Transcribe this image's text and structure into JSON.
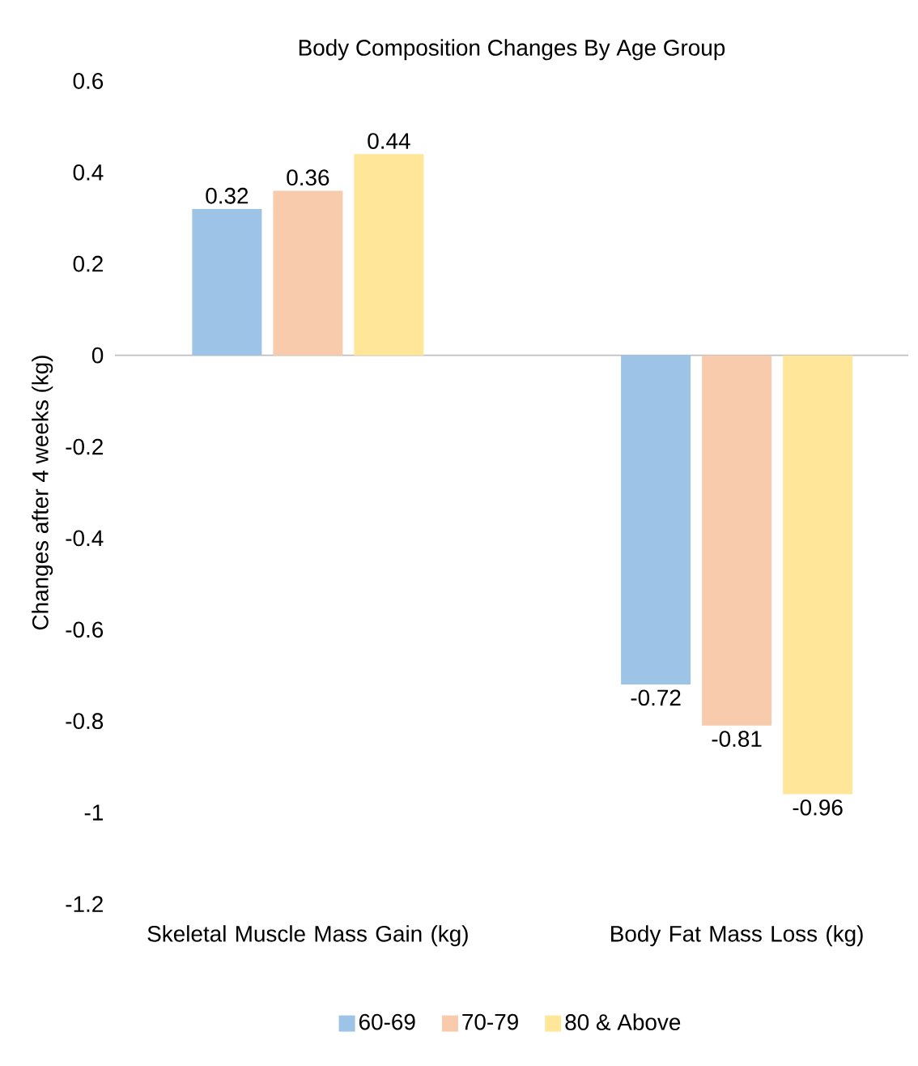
{
  "chart_data": {
    "type": "bar",
    "title": "Body Composition Changes By Age Group",
    "ylabel": "Changes after 4 weeks (kg)",
    "categories": [
      "Skeletal Muscle Mass Gain (kg)",
      "Body Fat Mass Loss (kg)"
    ],
    "series": [
      {
        "name": "60-69",
        "color": "#9dc3e6",
        "values": [
          0.32,
          -0.72
        ]
      },
      {
        "name": "70-79",
        "color": "#f8cbad",
        "values": [
          0.36,
          -0.81
        ]
      },
      {
        "name": "80 & Above",
        "color": "#ffe699",
        "values": [
          0.44,
          -0.96
        ]
      }
    ],
    "ylim": [
      -1.2,
      0.6
    ],
    "yticks": [
      -1.2,
      -1,
      -0.8,
      -0.6,
      -0.4,
      -0.2,
      0,
      0.2,
      0.4,
      0.6
    ],
    "data_labels": true,
    "legend": "bottom"
  }
}
